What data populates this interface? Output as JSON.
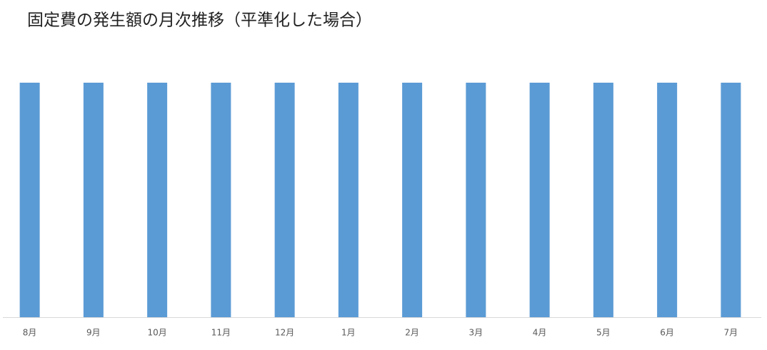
{
  "chart_data": {
    "type": "bar",
    "title": "固定費の発生額の月次推移（平準化した場合）",
    "categories": [
      "8月",
      "9月",
      "10月",
      "11月",
      "12月",
      "1月",
      "2月",
      "3月",
      "4月",
      "5月",
      "6月",
      "7月"
    ],
    "values": [
      1,
      1,
      1,
      1,
      1,
      1,
      1,
      1,
      1,
      1,
      1,
      1
    ],
    "color": "#5b9bd5",
    "ylim": [
      0,
      1
    ],
    "grid": false
  }
}
